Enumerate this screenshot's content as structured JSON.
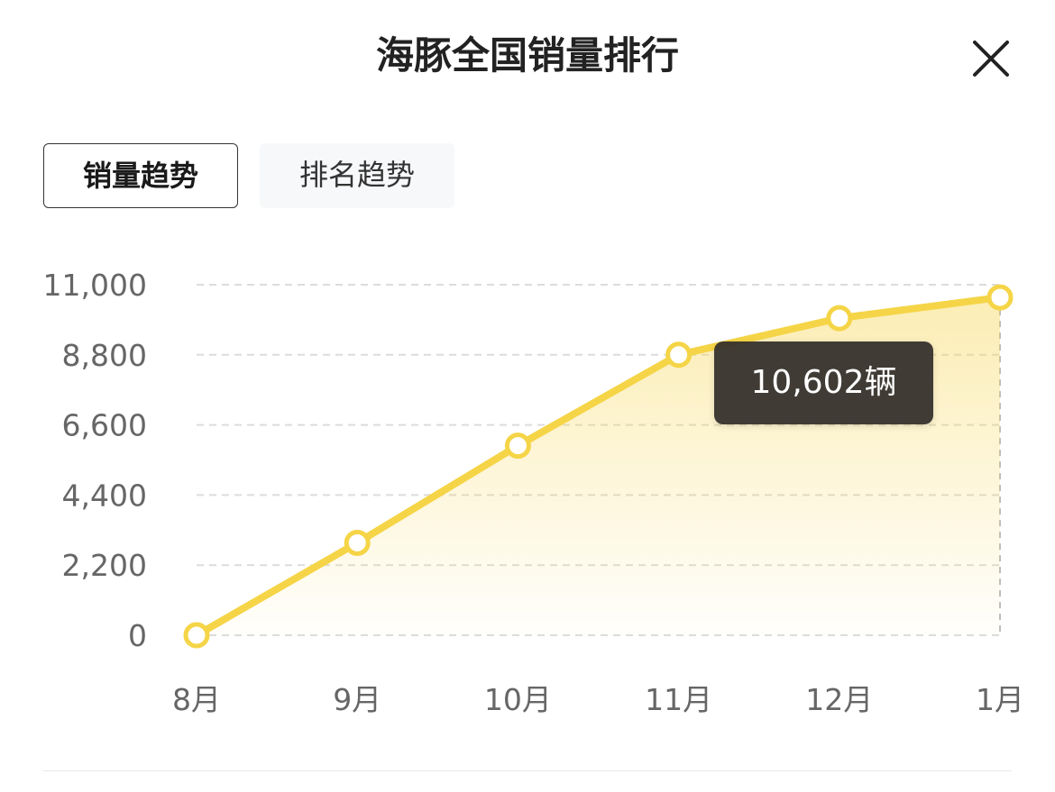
{
  "header": {
    "title": "海豚全国销量排行"
  },
  "tabs": [
    {
      "label": "销量趋势",
      "active": true
    },
    {
      "label": "排名趋势",
      "active": false
    }
  ],
  "tooltip": {
    "text": "10,602辆"
  },
  "colors": {
    "line": "#f5d547",
    "grid": "#dcdcdc",
    "axis_text": "#666666"
  },
  "chart_data": {
    "type": "area",
    "categories": [
      "8月",
      "9月",
      "10月",
      "11月",
      "12月",
      "1月"
    ],
    "values": [
      0,
      2900,
      5950,
      8800,
      9950,
      10602
    ],
    "y_ticks": [
      "0",
      "2,200",
      "4,400",
      "6,600",
      "8,800",
      "11,000"
    ],
    "ylim": [
      0,
      11000
    ],
    "grid": true,
    "highlighted_index": 5
  }
}
